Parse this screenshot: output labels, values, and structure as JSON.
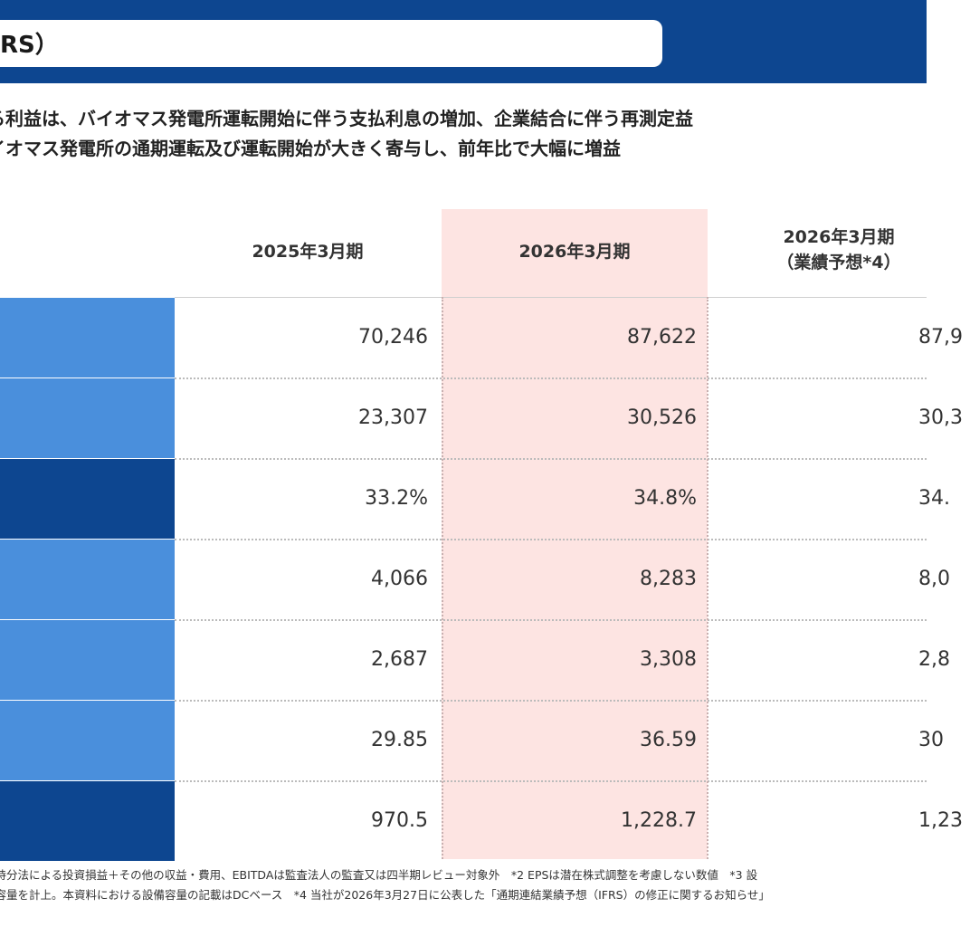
{
  "header": {
    "title": "RS）"
  },
  "summary": {
    "line1": "る利益は、バイオマス発電所運転開始に伴う支払利息の増加、企業結合に伴う再測定益",
    "line2": "イオマス発電所の通期運転及び運転開始が大きく寄与し、前年比で大幅に増益"
  },
  "table": {
    "columns": [
      {
        "label": "2025年3月期",
        "sub": ""
      },
      {
        "label": "2026年3月期",
        "sub": ""
      },
      {
        "label": "2026年3月期",
        "sub": "（業績予想*4）"
      }
    ],
    "rows": [
      {
        "label_shade": "light",
        "fy2025": "70,246",
        "fy2026": "87,622",
        "forecast": "87,9"
      },
      {
        "label_shade": "light",
        "fy2025": "23,307",
        "fy2026": "30,526",
        "forecast": "30,3"
      },
      {
        "label_shade": "dark",
        "fy2025": "33.2%",
        "fy2026": "34.8%",
        "forecast": "34."
      },
      {
        "label_shade": "light",
        "fy2025": "4,066",
        "fy2026": "8,283",
        "forecast": "8,0"
      },
      {
        "label_shade": "light",
        "fy2025": "2,687",
        "fy2026": "3,308",
        "forecast": "2,8"
      },
      {
        "label_shade": "light",
        "fy2025": "29.85",
        "fy2026": "36.59",
        "forecast": "30"
      },
      {
        "label_shade": "dark",
        "fy2025": "970.5",
        "fy2026": "1,228.7",
        "forecast": "1,23"
      }
    ]
  },
  "footnotes": {
    "line1": "＋持分法による投資損益＋その他の収益・費用、EBITDAは監査法人の監査又は四半期レビュー対象外　*2 EPSは潜在株式調整を考慮しない数値　*3 設",
    "line2": "備容量を計上。本資料における設備容量の記載はDCベース　*4 当社が2026年3月27日に公表した「通期連結業績予想（IFRS）の修正に関するお知らせ」"
  },
  "colors": {
    "header_band": "#0d4690",
    "label_light": "#4a8fdc",
    "label_dark": "#0d4690",
    "highlight_column": "#fde4e2"
  }
}
